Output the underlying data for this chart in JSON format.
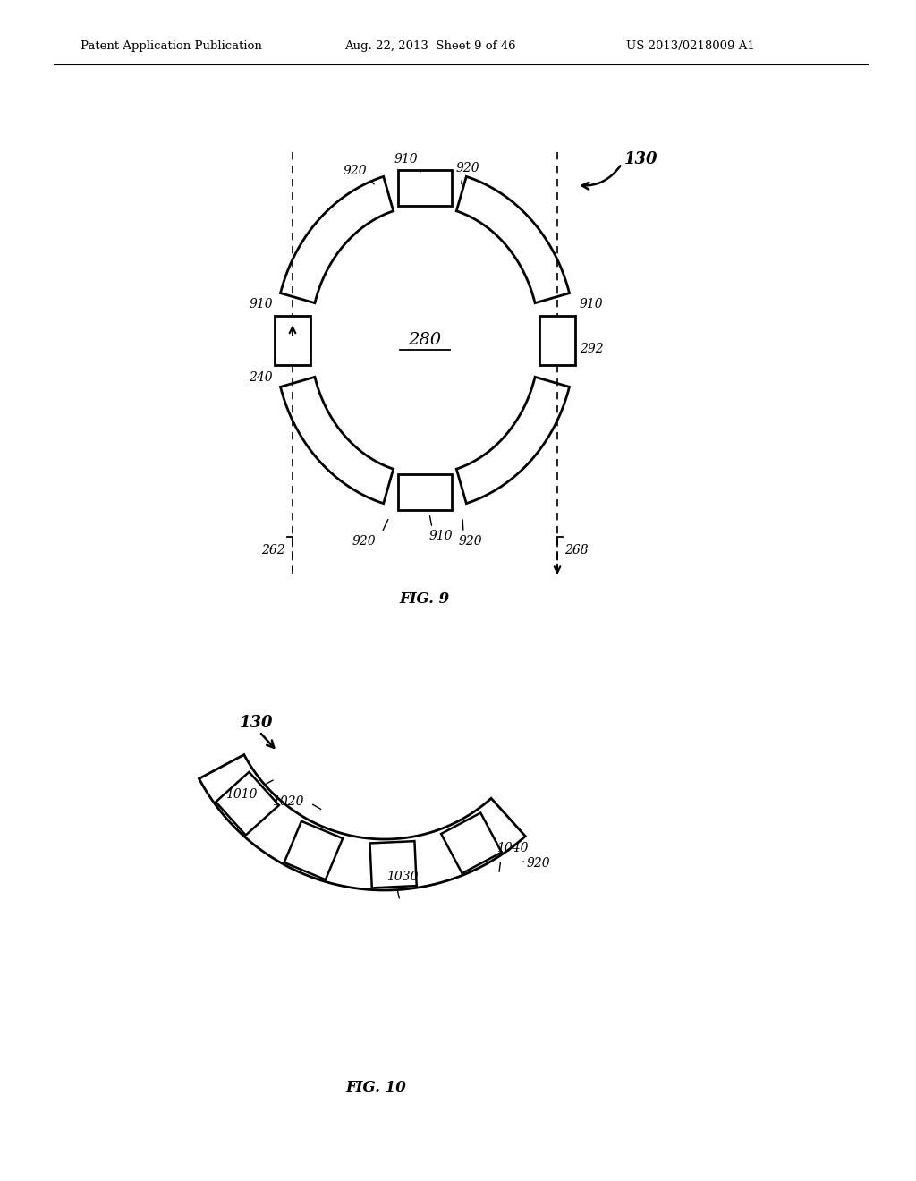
{
  "bg_color": "#ffffff",
  "line_color": "#000000",
  "header_left": "Patent Application Publication",
  "header_mid": "Aug. 22, 2013  Sheet 9 of 46",
  "header_right": "US 2013/0218009 A1"
}
